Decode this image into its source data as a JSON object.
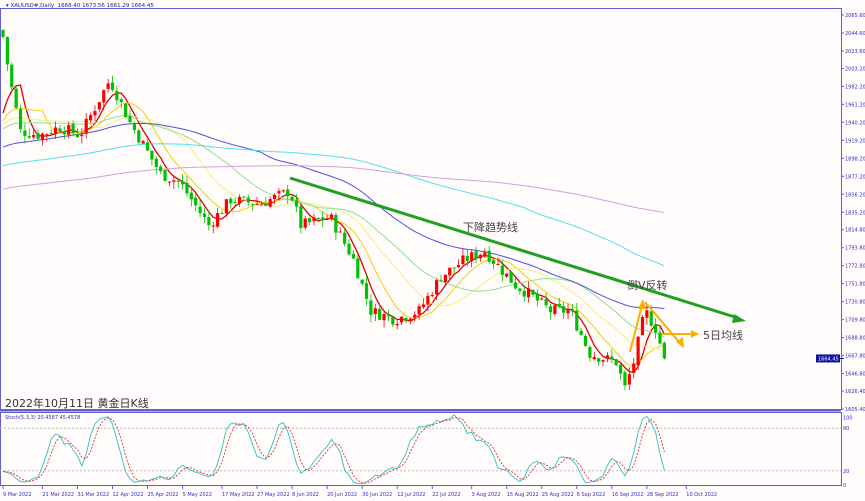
{
  "header": {
    "symbol": "XAUUSD#,Daily",
    "ohlc": "1668.40 1673.56 1661.29 1664.45"
  },
  "chart_data": {
    "type": "candlestick",
    "title": "2022年10月11日 黄金日K线",
    "bars": 152,
    "keyframes": [
      [
        0,
        2040
      ],
      [
        1.6,
        1990
      ],
      [
        4,
        1930
      ],
      [
        8.4,
        1925
      ],
      [
        13,
        1935
      ],
      [
        17.6,
        1925
      ],
      [
        24.4,
        1990
      ],
      [
        29,
        1940
      ],
      [
        36,
        1880
      ],
      [
        40.4,
        1870
      ],
      [
        47,
        1820
      ],
      [
        52,
        1850
      ],
      [
        58.7,
        1845
      ],
      [
        65.5,
        1860
      ],
      [
        68,
        1820
      ],
      [
        74.7,
        1830
      ],
      [
        80,
        1780
      ],
      [
        84,
        1720
      ],
      [
        89.5,
        1710
      ],
      [
        95,
        1720
      ],
      [
        100,
        1760
      ],
      [
        105.5,
        1780
      ],
      [
        110,
        1790
      ],
      [
        113.5,
        1770
      ],
      [
        117,
        1750
      ],
      [
        120,
        1740
      ],
      [
        125,
        1720
      ],
      [
        129.5,
        1720
      ],
      [
        134,
        1670
      ],
      [
        140,
        1660
      ],
      [
        142,
        1630
      ],
      [
        144,
        1660
      ],
      [
        146.6,
        1720
      ],
      [
        149,
        1700
      ],
      [
        151,
        1664.45
      ]
    ],
    "yticks": [
      2065.6,
      2044.6,
      2023.6,
      2003.2,
      1982.2,
      1961.2,
      1940.2,
      1919.2,
      1898.2,
      1877.2,
      1856.2,
      1835.2,
      1814.8,
      1793.8,
      1772.8,
      1751.8,
      1730.8,
      1709.8,
      1688.8,
      1667.8,
      1646.8,
      1626.4,
      1605.4
    ],
    "ylim": [
      1605.4,
      2065.6
    ],
    "current_price": "1664.45",
    "xticks": [
      [
        0,
        "9 Mar 2022"
      ],
      [
        9,
        "21 Mar 2022"
      ],
      [
        17,
        "31 Mar 2022"
      ],
      [
        25,
        "12 Apr 2022"
      ],
      [
        33,
        "25 Apr 2022"
      ],
      [
        41,
        "5 May 2022"
      ],
      [
        50,
        "17 May 2022"
      ],
      [
        58,
        "27 May 2022"
      ],
      [
        66,
        "8 Jun 2022"
      ],
      [
        74,
        "20 Jun 2022"
      ],
      [
        82,
        "30 Jun 2022"
      ],
      [
        90,
        "12 Jul 2022"
      ],
      [
        98,
        "22 Jul 2022"
      ],
      [
        107,
        "3 Aug 2022"
      ],
      [
        115,
        "15 Aug 2022"
      ],
      [
        123,
        "25 Aug 2022"
      ],
      [
        131,
        "6 Sep 2022"
      ],
      [
        139,
        "16 Sep 2022"
      ],
      [
        147,
        "28 Sep 2022"
      ],
      [
        156,
        "10 Oct 2022"
      ]
    ],
    "moving_averages": [
      {
        "period": 5,
        "color": "#e00000"
      },
      {
        "period": 10,
        "color": "#f5d000"
      },
      {
        "period": 20,
        "color": "#f0f080"
      },
      {
        "period": 30,
        "color": "#90e090"
      },
      {
        "period": 60,
        "color": "#5050e0"
      },
      {
        "period": 120,
        "color": "#50e0f0"
      },
      {
        "period": 200,
        "color": "#d0a0e0"
      }
    ],
    "up_color": "#ff0000",
    "down_color": "#00c000",
    "annotations": {
      "trend_label": "下降趋势线",
      "reversal_label": "倒V反转",
      "ma_label": "5日均线"
    },
    "stoch": {
      "label": "Stoch(5,3,3) 20.4587 45.4578",
      "yticks": [
        "100",
        "80",
        "20",
        "0"
      ]
    }
  }
}
